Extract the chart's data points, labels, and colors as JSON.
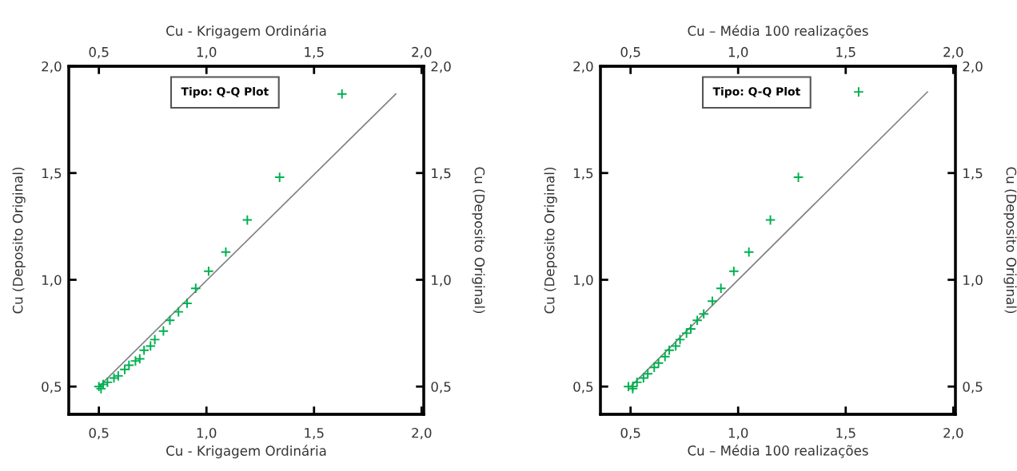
{
  "chart_data": [
    {
      "type": "scatter",
      "xlabel": "Cu - Krigagem Ordinária",
      "x2label": "Cu - Krigagem Ordinária",
      "ylabel": "Cu (Deposito Original)",
      "y2label": "Cu (Deposito Original)",
      "annotations": [
        "Tipo: Q-Q Plot"
      ],
      "marker": "cross",
      "grid": false,
      "xlim": [
        0.36,
        2.01
      ],
      "ylim": [
        0.37,
        2.0
      ],
      "x2lim": [
        0.36,
        2.01
      ],
      "y2lim": [
        0.37,
        2.0
      ],
      "xticks": [
        {
          "value": 0.5,
          "label": "0,5"
        },
        {
          "value": 1.0,
          "label": "1,0"
        },
        {
          "value": 1.5,
          "label": "1,5"
        },
        {
          "value": 2.0,
          "label": "2,0"
        }
      ],
      "x2ticks": [
        {
          "value": 0.5,
          "label": "0,5"
        },
        {
          "value": 1.0,
          "label": "1,0"
        },
        {
          "value": 1.5,
          "label": "1,5"
        },
        {
          "value": 2.0,
          "label": "2,0"
        }
      ],
      "yticks": [
        {
          "value": 0.5,
          "label": "0,5"
        },
        {
          "value": 1.0,
          "label": "1,0"
        },
        {
          "value": 1.5,
          "label": "1,5"
        },
        {
          "value": 2.0,
          "label": "2,0"
        }
      ],
      "y2ticks": [
        {
          "value": 0.5,
          "label": "0,5"
        },
        {
          "value": 1.0,
          "label": "1,0"
        },
        {
          "value": 1.5,
          "label": "1,5"
        },
        {
          "value": 2.0,
          "label": "2,0"
        }
      ],
      "series": [
        {
          "type": "line",
          "color": "#808080",
          "marker": "none",
          "x": [
            0.5,
            1.88
          ],
          "values": [
            0.5,
            1.87
          ]
        },
        {
          "color": "#00b050",
          "x": [
            1.63,
            1.34,
            1.19,
            1.09,
            1.01,
            0.95,
            0.91,
            0.87,
            0.83,
            0.8,
            0.76,
            0.74,
            0.71,
            0.69,
            0.67,
            0.64,
            0.62,
            0.59,
            0.57,
            0.54,
            0.52,
            0.5,
            0.51
          ],
          "values": [
            1.87,
            1.48,
            1.28,
            1.13,
            1.04,
            0.96,
            0.89,
            0.85,
            0.81,
            0.76,
            0.72,
            0.69,
            0.67,
            0.63,
            0.62,
            0.6,
            0.58,
            0.55,
            0.54,
            0.52,
            0.51,
            0.5,
            0.49
          ]
        }
      ]
    },
    {
      "type": "scatter",
      "xlabel": "Cu – Média 100 realizações",
      "x2label": "Cu – Média 100 realizações",
      "ylabel": "Cu (Deposito Original)",
      "y2label": "Cu (Deposito Original)",
      "annotations": [
        "Tipo: Q-Q Plot"
      ],
      "marker": "cross",
      "grid": false,
      "xlim": [
        0.36,
        2.01
      ],
      "ylim": [
        0.37,
        2.0
      ],
      "x2lim": [
        0.36,
        2.01
      ],
      "y2lim": [
        0.37,
        2.0
      ],
      "xticks": [
        {
          "value": 0.5,
          "label": "0,5"
        },
        {
          "value": 1.0,
          "label": "1,0"
        },
        {
          "value": 1.5,
          "label": "1,5"
        },
        {
          "value": 2.0,
          "label": "2,0"
        }
      ],
      "x2ticks": [
        {
          "value": 0.5,
          "label": "0,5"
        },
        {
          "value": 1.0,
          "label": "1,0"
        },
        {
          "value": 1.5,
          "label": "1,5"
        },
        {
          "value": 2.0,
          "label": "2,0"
        }
      ],
      "yticks": [
        {
          "value": 0.5,
          "label": "0,5"
        },
        {
          "value": 1.0,
          "label": "1,0"
        },
        {
          "value": 1.5,
          "label": "1,5"
        },
        {
          "value": 2.0,
          "label": "2,0"
        }
      ],
      "y2ticks": [
        {
          "value": 0.5,
          "label": "0,5"
        },
        {
          "value": 1.0,
          "label": "1,0"
        },
        {
          "value": 1.5,
          "label": "1,5"
        },
        {
          "value": 2.0,
          "label": "2,0"
        }
      ],
      "series": [
        {
          "type": "line",
          "color": "#808080",
          "marker": "none",
          "x": [
            0.5,
            1.88
          ],
          "values": [
            0.5,
            1.88
          ]
        },
        {
          "color": "#00b050",
          "x": [
            1.56,
            1.28,
            1.15,
            1.05,
            0.98,
            0.92,
            0.88,
            0.84,
            0.81,
            0.78,
            0.76,
            0.73,
            0.71,
            0.68,
            0.66,
            0.63,
            0.61,
            0.58,
            0.56,
            0.53,
            0.51,
            0.49,
            0.51
          ],
          "values": [
            1.88,
            1.48,
            1.28,
            1.13,
            1.04,
            0.96,
            0.9,
            0.84,
            0.81,
            0.77,
            0.75,
            0.72,
            0.69,
            0.67,
            0.64,
            0.61,
            0.59,
            0.56,
            0.54,
            0.52,
            0.5,
            0.5,
            0.49
          ]
        }
      ]
    }
  ]
}
